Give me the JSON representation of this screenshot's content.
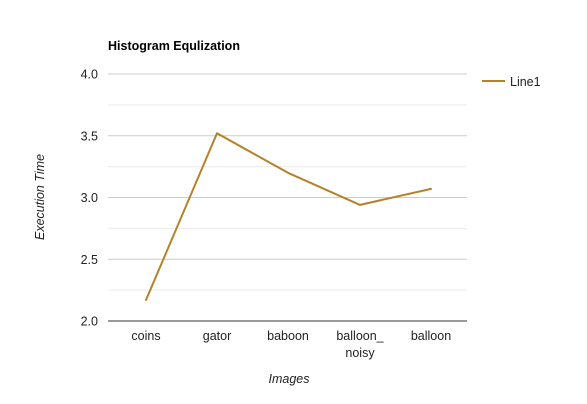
{
  "chart_data": {
    "type": "line",
    "title": "Histogram Equlization",
    "xlabel": "Images",
    "ylabel": "Execution Time",
    "categories": [
      [
        "coins"
      ],
      [
        "gator"
      ],
      [
        "baboon"
      ],
      [
        "balloon_",
        "noisy"
      ],
      [
        "balloon"
      ]
    ],
    "series": [
      {
        "name": "Line1",
        "color": "#b5822a",
        "values": [
          2.17,
          3.52,
          3.2,
          2.94,
          3.07
        ]
      }
    ],
    "ylim": [
      2.0,
      4.0
    ],
    "yticks": [
      "2.0",
      "2.5",
      "3.0",
      "3.5",
      "4.0"
    ],
    "grid": true,
    "legend_position": "right-top",
    "colors": {
      "gridline": "#cccccc",
      "minor_gridline": "#ececec",
      "baseline": "#333333"
    }
  }
}
